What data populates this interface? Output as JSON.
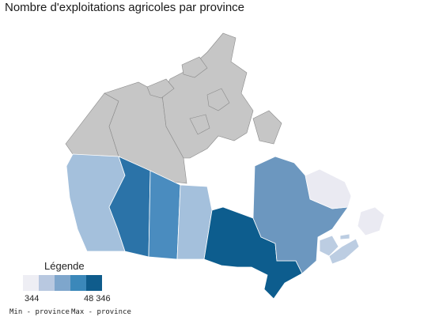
{
  "title": "Nombre d'exploitations agricoles par province",
  "legend": {
    "title": "Légende",
    "min_value": "344",
    "max_value": "48 346",
    "min_label": "Min - province",
    "max_label": "Max - province",
    "colors": [
      "#eeeef4",
      "#b8c8e0",
      "#7ea6cc",
      "#3b88ba",
      "#0f5c8c"
    ]
  },
  "regions": {
    "yukon": {
      "color": "#c6c6c6"
    },
    "northwest_territories": {
      "color": "#c6c6c6"
    },
    "nunavut": {
      "color": "#c6c6c6"
    },
    "british_columbia": {
      "color": "#a4c0dc"
    },
    "alberta": {
      "color": "#2b73a8"
    },
    "saskatchewan": {
      "color": "#4a8cbf"
    },
    "manitoba": {
      "color": "#a4c0dc"
    },
    "ontario": {
      "color": "#0d5d8e"
    },
    "quebec": {
      "color": "#6c97bf"
    },
    "newfoundland_labrador": {
      "color": "#eaeaf2"
    },
    "new_brunswick": {
      "color": "#bccde2"
    },
    "nova_scotia": {
      "color": "#bccde2"
    },
    "prince_edward_island": {
      "color": "#bccde2"
    }
  }
}
